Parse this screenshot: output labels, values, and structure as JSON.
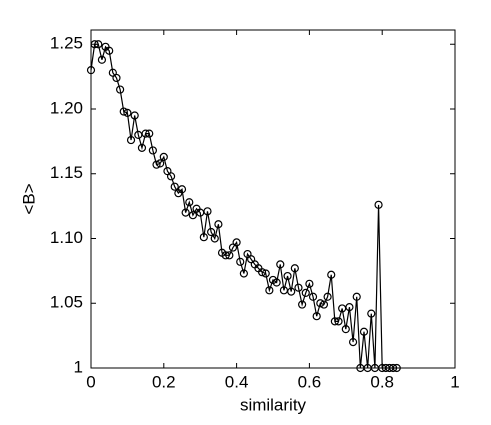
{
  "chart_data": {
    "type": "line",
    "xlabel": "similarity",
    "ylabel": "<B>",
    "x": [
      0,
      0.01,
      0.02,
      0.03,
      0.04,
      0.05,
      0.06,
      0.07,
      0.08,
      0.09,
      0.1,
      0.11,
      0.12,
      0.13,
      0.14,
      0.15,
      0.16,
      0.17,
      0.18,
      0.19,
      0.2,
      0.21,
      0.22,
      0.23,
      0.24,
      0.25,
      0.26,
      0.27,
      0.28,
      0.29,
      0.3,
      0.31,
      0.32,
      0.33,
      0.34,
      0.35,
      0.36,
      0.37,
      0.38,
      0.39,
      0.4,
      0.41,
      0.42,
      0.43,
      0.44,
      0.45,
      0.46,
      0.47,
      0.48,
      0.49,
      0.5,
      0.51,
      0.52,
      0.53,
      0.54,
      0.55,
      0.56,
      0.57,
      0.58,
      0.59,
      0.6,
      0.61,
      0.62,
      0.63,
      0.64,
      0.65,
      0.66,
      0.67,
      0.68,
      0.69,
      0.7,
      0.71,
      0.72,
      0.73,
      0.74,
      0.75,
      0.76,
      0.77,
      0.78,
      0.79,
      0.8,
      0.81,
      0.82,
      0.83,
      0.84
    ],
    "series": [
      {
        "color": "#000000",
        "marker": "open-circle",
        "values": [
          1.23,
          1.25,
          1.25,
          1.238,
          1.248,
          1.245,
          1.228,
          1.224,
          1.215,
          1.198,
          1.197,
          1.176,
          1.195,
          1.18,
          1.17,
          1.181,
          1.181,
          1.168,
          1.157,
          1.158,
          1.163,
          1.152,
          1.148,
          1.14,
          1.135,
          1.138,
          1.12,
          1.128,
          1.118,
          1.123,
          1.12,
          1.101,
          1.121,
          1.105,
          1.1,
          1.111,
          1.089,
          1.087,
          1.087,
          1.093,
          1.097,
          1.082,
          1.073,
          1.088,
          1.084,
          1.08,
          1.077,
          1.074,
          1.073,
          1.06,
          1.068,
          1.066,
          1.08,
          1.06,
          1.071,
          1.059,
          1.077,
          1.062,
          1.049,
          1.058,
          1.065,
          1.055,
          1.04,
          1.05,
          1.049,
          1.055,
          1.072,
          1.036,
          1.036,
          1.046,
          1.03,
          1.047,
          1.02,
          1.055,
          1.0,
          1.028,
          1.0,
          1.042,
          1.0,
          1.126,
          1.0,
          1.0,
          1.0,
          1.0,
          1.0
        ]
      }
    ],
    "xlim": [
      0,
      1
    ],
    "xticks": [
      0,
      0.2,
      0.4,
      0.6,
      0.8,
      1
    ],
    "ylim": [
      1,
      1.261
    ],
    "yticks": [
      1,
      1.05,
      {
        "value": 1.1,
        "label": "1.10"
      },
      1.15,
      {
        "value": 1.2,
        "label": "1.20"
      },
      1.25
    ],
    "grid": false
  }
}
